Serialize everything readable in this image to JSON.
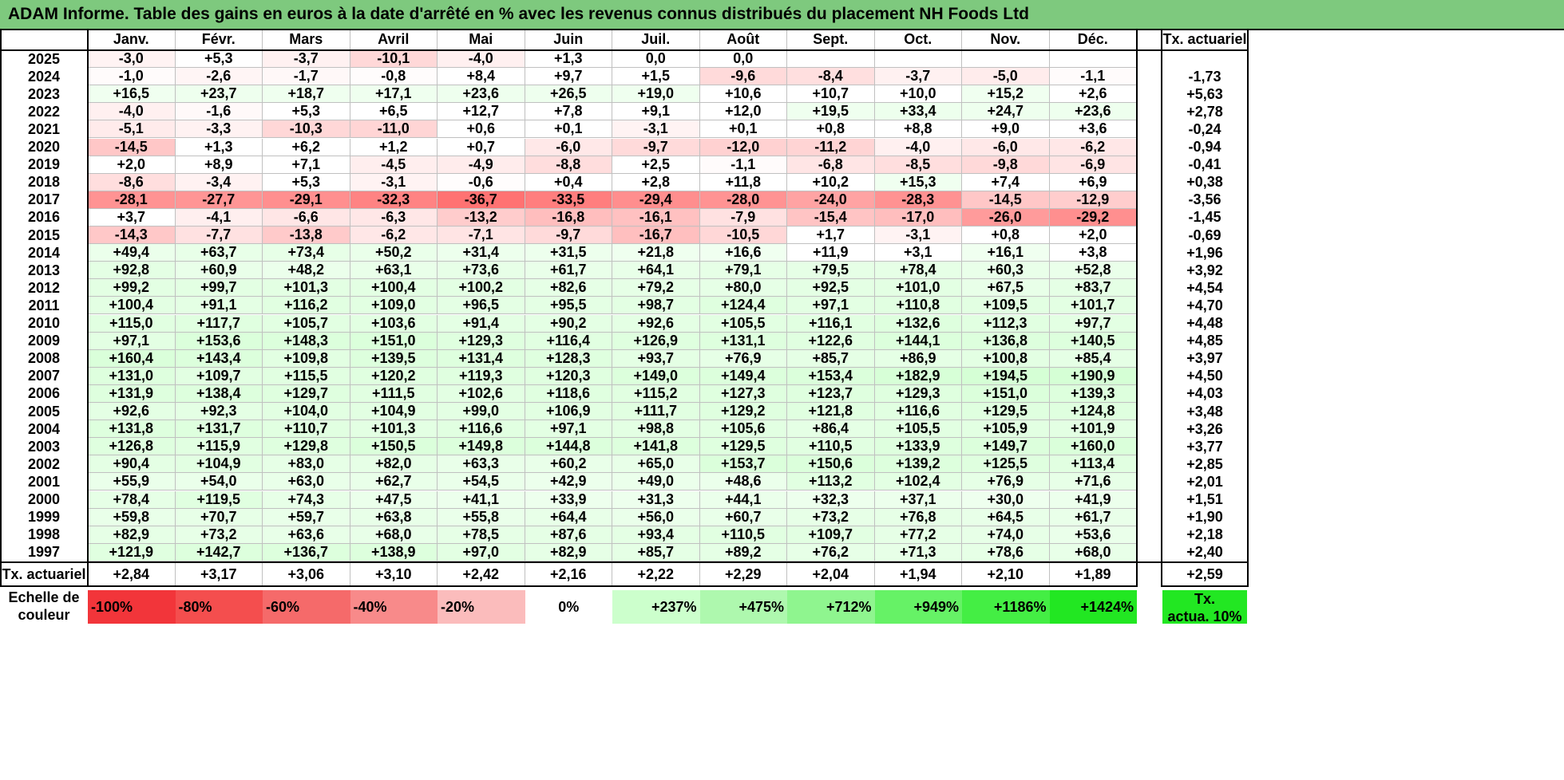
{
  "title": "ADAM Informe. Table des gains en euros à la date d'arrêté en % avec les revenus connus distribués du placement NH Foods Ltd",
  "chart_data": {
    "type": "table",
    "months": [
      "Janv.",
      "Févr.",
      "Mars",
      "Avril",
      "Mai",
      "Juin",
      "Juil.",
      "Août",
      "Sept.",
      "Oct.",
      "Nov.",
      "Déc."
    ],
    "rate_header": "Tx. actuariel",
    "rows": [
      {
        "year": "2025",
        "values": [
          "-3,0",
          "+5,3",
          "-3,7",
          "-10,1",
          "-4,0",
          "+1,3",
          "0,0",
          "0,0",
          "",
          "",
          "",
          ""
        ],
        "rate": ""
      },
      {
        "year": "2024",
        "values": [
          "-1,0",
          "-2,6",
          "-1,7",
          "-0,8",
          "+8,4",
          "+9,7",
          "+1,5",
          "-9,6",
          "-8,4",
          "-3,7",
          "-5,0",
          "-1,1"
        ],
        "rate": "-1,73"
      },
      {
        "year": "2023",
        "values": [
          "+16,5",
          "+23,7",
          "+18,7",
          "+17,1",
          "+23,6",
          "+26,5",
          "+19,0",
          "+10,6",
          "+10,7",
          "+10,0",
          "+15,2",
          "+2,6"
        ],
        "rate": "+5,63"
      },
      {
        "year": "2022",
        "values": [
          "-4,0",
          "-1,6",
          "+5,3",
          "+6,5",
          "+12,7",
          "+7,8",
          "+9,1",
          "+12,0",
          "+19,5",
          "+33,4",
          "+24,7",
          "+23,6"
        ],
        "rate": "+2,78"
      },
      {
        "year": "2021",
        "values": [
          "-5,1",
          "-3,3",
          "-10,3",
          "-11,0",
          "+0,6",
          "+0,1",
          "-3,1",
          "+0,1",
          "+0,8",
          "+8,8",
          "+9,0",
          "+3,6"
        ],
        "rate": "-0,24"
      },
      {
        "year": "2020",
        "values": [
          "-14,5",
          "+1,3",
          "+6,2",
          "+1,2",
          "+0,7",
          "-6,0",
          "-9,7",
          "-12,0",
          "-11,2",
          "-4,0",
          "-6,0",
          "-6,2"
        ],
        "rate": "-0,94"
      },
      {
        "year": "2019",
        "values": [
          "+2,0",
          "+8,9",
          "+7,1",
          "-4,5",
          "-4,9",
          "-8,8",
          "+2,5",
          "-1,1",
          "-6,8",
          "-8,5",
          "-9,8",
          "-6,9"
        ],
        "rate": "-0,41"
      },
      {
        "year": "2018",
        "values": [
          "-8,6",
          "-3,4",
          "+5,3",
          "-3,1",
          "-0,6",
          "+0,4",
          "+2,8",
          "+11,8",
          "+10,2",
          "+15,3",
          "+7,4",
          "+6,9"
        ],
        "rate": "+0,38"
      },
      {
        "year": "2017",
        "values": [
          "-28,1",
          "-27,7",
          "-29,1",
          "-32,3",
          "-36,7",
          "-33,5",
          "-29,4",
          "-28,0",
          "-24,0",
          "-28,3",
          "-14,5",
          "-12,9"
        ],
        "rate": "-3,56"
      },
      {
        "year": "2016",
        "values": [
          "+3,7",
          "-4,1",
          "-6,6",
          "-6,3",
          "-13,2",
          "-16,8",
          "-16,1",
          "-7,9",
          "-15,4",
          "-17,0",
          "-26,0",
          "-29,2"
        ],
        "rate": "-1,45"
      },
      {
        "year": "2015",
        "values": [
          "-14,3",
          "-7,7",
          "-13,8",
          "-6,2",
          "-7,1",
          "-9,7",
          "-16,7",
          "-10,5",
          "+1,7",
          "-3,1",
          "+0,8",
          "+2,0"
        ],
        "rate": "-0,69"
      },
      {
        "year": "2014",
        "values": [
          "+49,4",
          "+63,7",
          "+73,4",
          "+50,2",
          "+31,4",
          "+31,5",
          "+21,8",
          "+16,6",
          "+11,9",
          "+3,1",
          "+16,1",
          "+3,8"
        ],
        "rate": "+1,96"
      },
      {
        "year": "2013",
        "values": [
          "+92,8",
          "+60,9",
          "+48,2",
          "+63,1",
          "+73,6",
          "+61,7",
          "+64,1",
          "+79,1",
          "+79,5",
          "+78,4",
          "+60,3",
          "+52,8"
        ],
        "rate": "+3,92"
      },
      {
        "year": "2012",
        "values": [
          "+99,2",
          "+99,7",
          "+101,3",
          "+100,4",
          "+100,2",
          "+82,6",
          "+79,2",
          "+80,0",
          "+92,5",
          "+101,0",
          "+67,5",
          "+83,7"
        ],
        "rate": "+4,54"
      },
      {
        "year": "2011",
        "values": [
          "+100,4",
          "+91,1",
          "+116,2",
          "+109,0",
          "+96,5",
          "+95,5",
          "+98,7",
          "+124,4",
          "+97,1",
          "+110,8",
          "+109,5",
          "+101,7"
        ],
        "rate": "+4,70"
      },
      {
        "year": "2010",
        "values": [
          "+115,0",
          "+117,7",
          "+105,7",
          "+103,6",
          "+91,4",
          "+90,2",
          "+92,6",
          "+105,5",
          "+116,1",
          "+132,6",
          "+112,3",
          "+97,7"
        ],
        "rate": "+4,48"
      },
      {
        "year": "2009",
        "values": [
          "+97,1",
          "+153,6",
          "+148,3",
          "+151,0",
          "+129,3",
          "+116,4",
          "+126,9",
          "+131,1",
          "+122,6",
          "+144,1",
          "+136,8",
          "+140,5"
        ],
        "rate": "+4,85"
      },
      {
        "year": "2008",
        "values": [
          "+160,4",
          "+143,4",
          "+109,8",
          "+139,5",
          "+131,4",
          "+128,3",
          "+93,7",
          "+76,9",
          "+85,7",
          "+86,9",
          "+100,8",
          "+85,4"
        ],
        "rate": "+3,97"
      },
      {
        "year": "2007",
        "values": [
          "+131,0",
          "+109,7",
          "+115,5",
          "+120,2",
          "+119,3",
          "+120,3",
          "+149,0",
          "+149,4",
          "+153,4",
          "+182,9",
          "+194,5",
          "+190,9"
        ],
        "rate": "+4,50"
      },
      {
        "year": "2006",
        "values": [
          "+131,9",
          "+138,4",
          "+129,7",
          "+111,5",
          "+102,6",
          "+118,6",
          "+115,2",
          "+127,3",
          "+123,7",
          "+129,3",
          "+151,0",
          "+139,3"
        ],
        "rate": "+4,03"
      },
      {
        "year": "2005",
        "values": [
          "+92,6",
          "+92,3",
          "+104,0",
          "+104,9",
          "+99,0",
          "+106,9",
          "+111,7",
          "+129,2",
          "+121,8",
          "+116,6",
          "+129,5",
          "+124,8"
        ],
        "rate": "+3,48"
      },
      {
        "year": "2004",
        "values": [
          "+131,8",
          "+131,7",
          "+110,7",
          "+101,3",
          "+116,6",
          "+97,1",
          "+98,8",
          "+105,6",
          "+86,4",
          "+105,5",
          "+105,9",
          "+101,9"
        ],
        "rate": "+3,26"
      },
      {
        "year": "2003",
        "values": [
          "+126,8",
          "+115,9",
          "+129,8",
          "+150,5",
          "+149,8",
          "+144,8",
          "+141,8",
          "+129,5",
          "+110,5",
          "+133,9",
          "+149,7",
          "+160,0"
        ],
        "rate": "+3,77"
      },
      {
        "year": "2002",
        "values": [
          "+90,4",
          "+104,9",
          "+83,0",
          "+82,0",
          "+63,3",
          "+60,2",
          "+65,0",
          "+153,7",
          "+150,6",
          "+139,2",
          "+125,5",
          "+113,4"
        ],
        "rate": "+2,85"
      },
      {
        "year": "2001",
        "values": [
          "+55,9",
          "+54,0",
          "+63,0",
          "+62,7",
          "+54,5",
          "+42,9",
          "+49,0",
          "+48,6",
          "+113,2",
          "+102,4",
          "+76,9",
          "+71,6"
        ],
        "rate": "+2,01"
      },
      {
        "year": "2000",
        "values": [
          "+78,4",
          "+119,5",
          "+74,3",
          "+47,5",
          "+41,1",
          "+33,9",
          "+31,3",
          "+44,1",
          "+32,3",
          "+37,1",
          "+30,0",
          "+41,9"
        ],
        "rate": "+1,51"
      },
      {
        "year": "1999",
        "values": [
          "+59,8",
          "+70,7",
          "+59,7",
          "+63,8",
          "+55,8",
          "+64,4",
          "+56,0",
          "+60,7",
          "+73,2",
          "+76,8",
          "+64,5",
          "+61,7"
        ],
        "rate": "+1,90"
      },
      {
        "year": "1998",
        "values": [
          "+82,9",
          "+73,2",
          "+63,6",
          "+68,0",
          "+78,5",
          "+87,6",
          "+93,4",
          "+110,5",
          "+109,7",
          "+77,2",
          "+74,0",
          "+53,6"
        ],
        "rate": "+2,18"
      },
      {
        "year": "1997",
        "values": [
          "+121,9",
          "+142,7",
          "+136,7",
          "+138,9",
          "+97,0",
          "+82,9",
          "+85,7",
          "+89,2",
          "+76,2",
          "+71,3",
          "+78,6",
          "+68,0"
        ],
        "rate": "+2,40"
      }
    ],
    "footer": {
      "label": "Tx. actuariel",
      "values": [
        "+2,84",
        "+3,17",
        "+3,06",
        "+3,10",
        "+2,42",
        "+2,16",
        "+2,22",
        "+2,29",
        "+2,04",
        "+1,94",
        "+2,10",
        "+1,89"
      ],
      "rate": "+2,59"
    },
    "legend": {
      "label_line1": "Echelle de",
      "label_line2": "couleur",
      "items": [
        {
          "text": "-100%",
          "color": "#f2353a",
          "align": "left"
        },
        {
          "text": "-80%",
          "color": "#f44e4e",
          "align": "left"
        },
        {
          "text": "-60%",
          "color": "#f56a6a",
          "align": "left"
        },
        {
          "text": "-40%",
          "color": "#f88a8a",
          "align": "left"
        },
        {
          "text": "-20%",
          "color": "#fbbcbc",
          "align": "left"
        },
        {
          "text": "0%",
          "color": "#ffffff",
          "align": "center"
        },
        {
          "text": "+237%",
          "color": "#ccffcc",
          "align": "right"
        },
        {
          "text": "+475%",
          "color": "#aef8ae",
          "align": "right"
        },
        {
          "text": "+712%",
          "color": "#8ff58f",
          "align": "right"
        },
        {
          "text": "+949%",
          "color": "#66f266",
          "align": "right"
        },
        {
          "text": "+1186%",
          "color": "#44ee44",
          "align": "right"
        },
        {
          "text": "+1424%",
          "color": "#22e722",
          "align": "right"
        }
      ],
      "rate_line1": "Tx.",
      "rate_line2": "actua. 10%",
      "rate_color": "#22e722"
    },
    "colors": {
      "title_background": "#7ec97e",
      "negative_max": "#f97070",
      "positive_base": "#eefeee",
      "neutral": "#ffffff"
    }
  }
}
